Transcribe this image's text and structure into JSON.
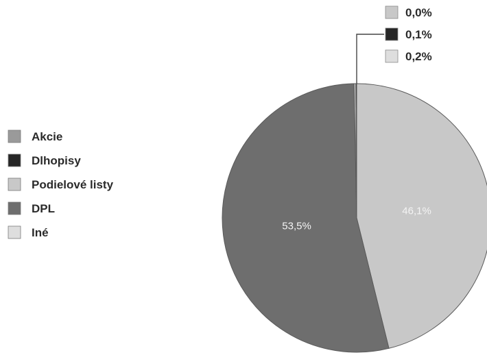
{
  "chart_data": {
    "type": "pie",
    "title": "",
    "categories": [
      "Akcie",
      "Dlhopisy",
      "Podielové listy",
      "DPL",
      "Iné"
    ],
    "values": [
      0.0,
      0.1,
      46.1,
      53.5,
      0.2
    ],
    "value_labels": [
      "0,0%",
      "0,1%",
      "46,1%",
      "53,5%",
      "0,2%"
    ],
    "colors": [
      "#9a9a9a",
      "#262626",
      "#c8c8c8",
      "#6e6e6e",
      "#dedede"
    ],
    "legend_position": "left",
    "small_slices_legend": [
      {
        "label": "0,0%",
        "color": "#c8c8c8"
      },
      {
        "label": "0,1%",
        "color": "#262626"
      },
      {
        "label": "0,2%",
        "color": "#dedede"
      }
    ]
  }
}
